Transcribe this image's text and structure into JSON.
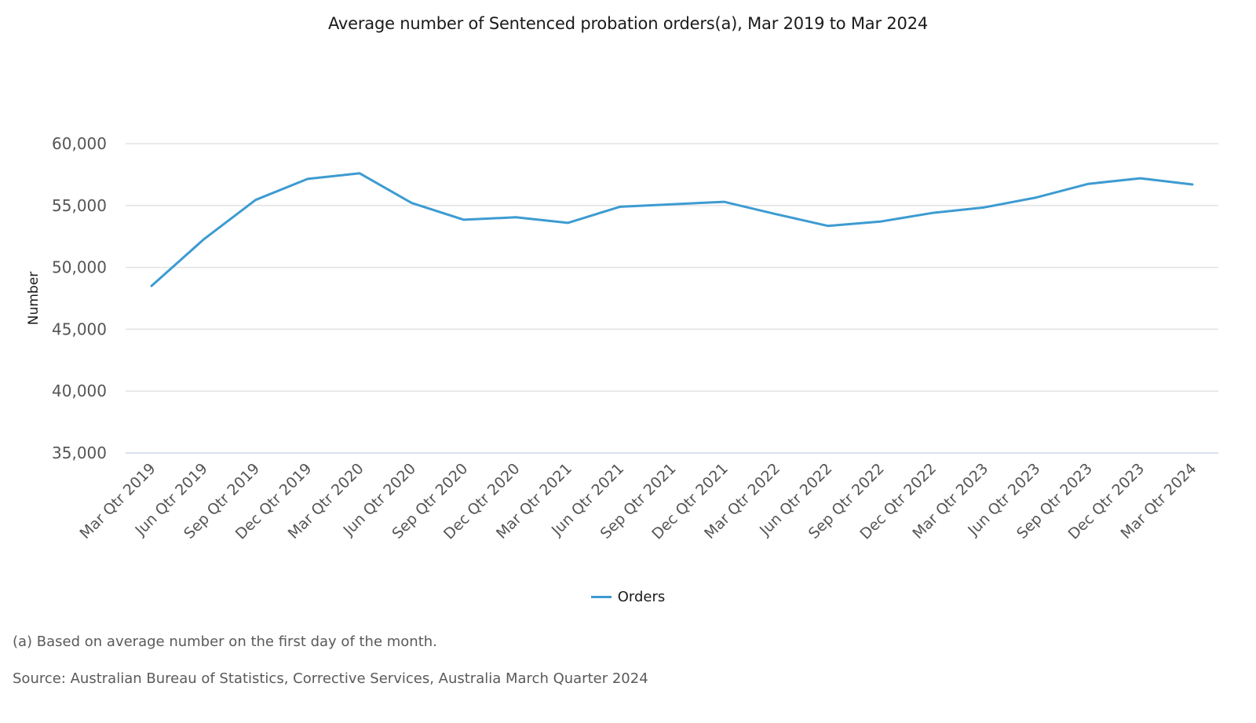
{
  "chart_data": {
    "type": "line",
    "title": "Average number of Sentenced probation orders(a), Mar 2019 to Mar 2024",
    "xlabel": "",
    "ylabel": "Number",
    "ylim": [
      35000,
      60000
    ],
    "yticks": [
      35000,
      40000,
      45000,
      50000,
      55000,
      60000
    ],
    "ytick_labels": [
      "35,000",
      "40,000",
      "45,000",
      "50,000",
      "55,000",
      "60,000"
    ],
    "grid": true,
    "legend_position": "bottom-center",
    "categories": [
      "Mar Qtr 2019",
      "Jun Qtr 2019",
      "Sep Qtr 2019",
      "Dec Qtr 2019",
      "Mar Qtr 2020",
      "Jun Qtr 2020",
      "Sep Qtr 2020",
      "Dec Qtr 2020",
      "Mar Qtr 2021",
      "Jun Qtr 2021",
      "Sep Qtr 2021",
      "Dec Qtr 2021",
      "Mar Qtr 2022",
      "Jun Qtr 2022",
      "Sep Qtr 2022",
      "Dec Qtr 2022",
      "Mar Qtr 2023",
      "Jun Qtr 2023",
      "Sep Qtr 2023",
      "Dec Qtr 2023",
      "Mar Qtr 2024"
    ],
    "series": [
      {
        "name": "Orders",
        "color": "#3d9bd1",
        "values": [
          48500,
          52250,
          55450,
          57150,
          57600,
          55200,
          53850,
          54050,
          53600,
          54900,
          55100,
          55300,
          54300,
          53350,
          53700,
          54400,
          54850,
          55650,
          56750,
          57200,
          56700
        ]
      }
    ]
  },
  "footer": {
    "note": "(a) Based on average number on the first day of the month.",
    "source": "Source: Australian Bureau of Statistics, Corrective Services, Australia March Quarter 2024"
  }
}
